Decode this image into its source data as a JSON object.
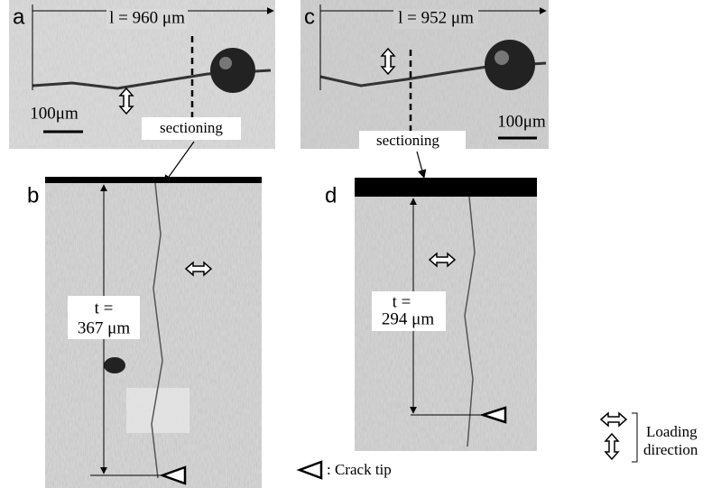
{
  "panels": [
    {
      "label": "a",
      "length": "l = 960 μm",
      "scale": "100μm",
      "section": "sectioning"
    },
    {
      "label": "b",
      "thickness": [
        "t =",
        "367 μm"
      ]
    },
    {
      "label": "c",
      "length": "l = 952 μm",
      "scale": "100μm",
      "section": "sectioning"
    },
    {
      "label": "d",
      "thickness": [
        "t =",
        "294 μm"
      ]
    }
  ],
  "legend": {
    "crack_tip": ": Crack tip",
    "loading": [
      "Loading",
      "direction"
    ]
  }
}
